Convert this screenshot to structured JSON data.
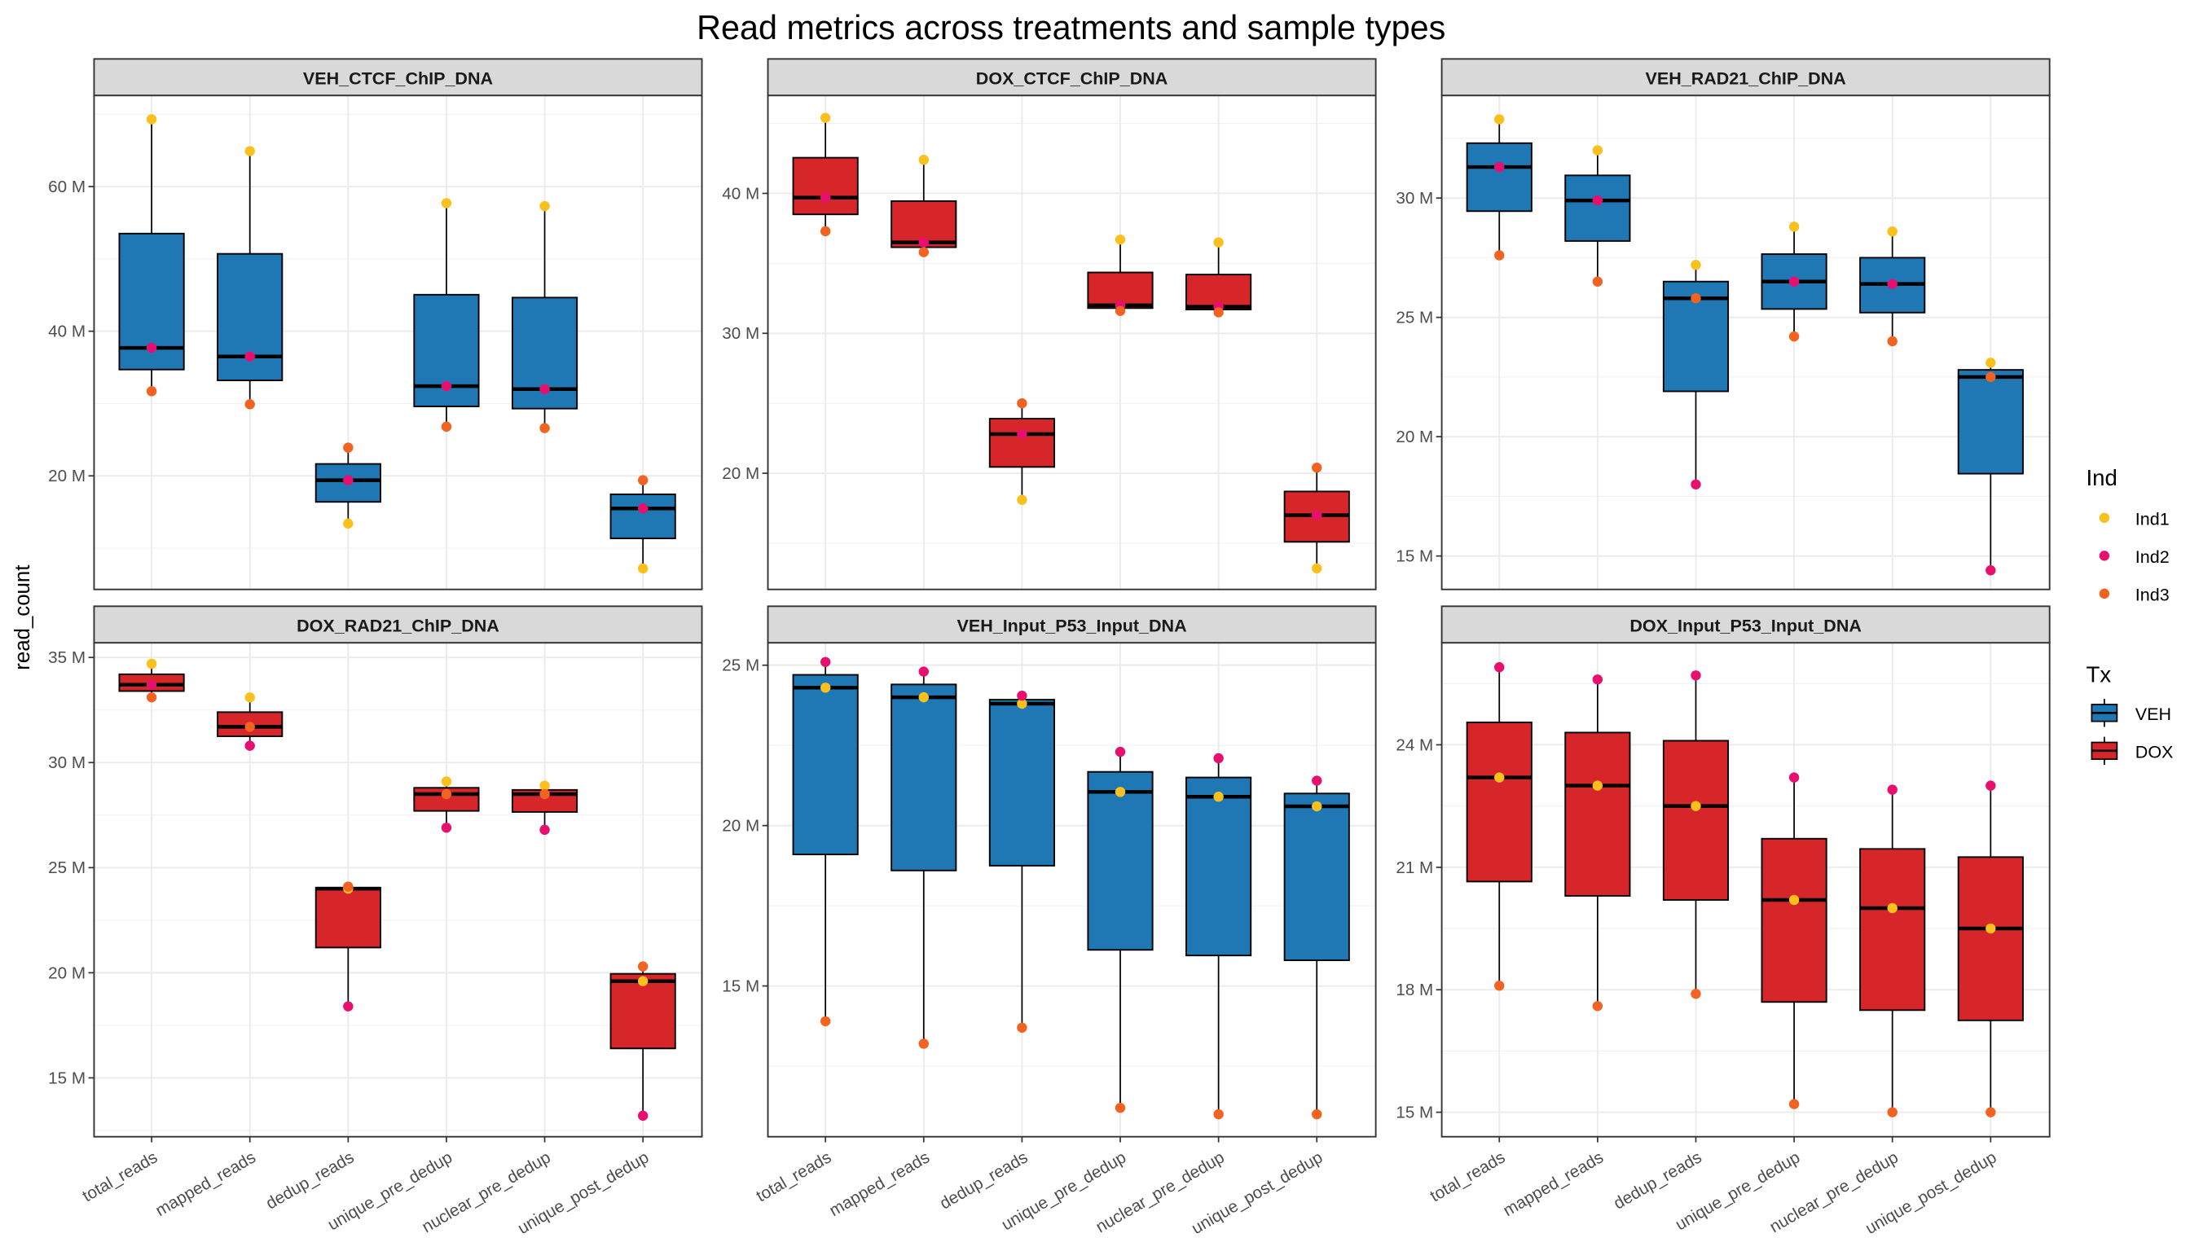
{
  "chart_data": {
    "type": "box",
    "title": "Read metrics across treatments and sample types",
    "xlabel": "",
    "ylabel": "read_count",
    "categories": [
      "total_reads",
      "mapped_reads",
      "dedup_reads",
      "unique_pre_dedup",
      "nuclear_pre_dedup",
      "unique_post_dedup"
    ],
    "unit_suffix": " M",
    "legend_ind": {
      "title": "Ind",
      "entries": [
        "Ind1",
        "Ind2",
        "Ind3"
      ],
      "colors": [
        "#F9C01E",
        "#E8106F",
        "#F26322"
      ],
      "position": "right"
    },
    "legend_tx": {
      "title": "Tx",
      "entries": [
        "VEH",
        "DOX"
      ],
      "colors": [
        "#1F78B4",
        "#D7262A"
      ],
      "position": "right"
    },
    "grid": true,
    "panels": [
      {
        "name": "VEH_CTCF_ChIP_DNA",
        "tx": "VEH",
        "ylim": [
          4.3,
          72.6
        ],
        "yticks": [
          20,
          40,
          60
        ],
        "points": {
          "Ind1": [
            69.3,
            64.9,
            13.4,
            57.7,
            57.3,
            7.2
          ],
          "Ind2": [
            37.7,
            36.5,
            19.4,
            32.4,
            32.0,
            15.5
          ],
          "Ind3": [
            31.7,
            29.9,
            23.9,
            26.8,
            26.6,
            19.4
          ]
        }
      },
      {
        "name": "DOX_CTCF_ChIP_DNA",
        "tx": "DOX",
        "ylim": [
          11.7,
          47.0
        ],
        "yticks": [
          20,
          30,
          40
        ],
        "points": {
          "Ind1": [
            45.4,
            42.4,
            18.1,
            36.7,
            36.5,
            13.2
          ],
          "Ind2": [
            39.7,
            36.5,
            22.8,
            32.0,
            31.9,
            17.0
          ],
          "Ind3": [
            37.3,
            35.8,
            25.0,
            31.6,
            31.5,
            20.4
          ]
        }
      },
      {
        "name": "VEH_RAD21_ChIP_DNA",
        "tx": "VEH",
        "ylim": [
          13.6,
          34.3
        ],
        "yticks": [
          15,
          20,
          25,
          30
        ],
        "points": {
          "Ind1": [
            33.3,
            32.0,
            27.2,
            28.8,
            28.6,
            23.1
          ],
          "Ind2": [
            31.3,
            29.9,
            18.0,
            26.5,
            26.4,
            14.4
          ],
          "Ind3": [
            27.6,
            26.5,
            25.8,
            24.2,
            24.0,
            22.5
          ]
        }
      },
      {
        "name": "DOX_RAD21_ChIP_DNA",
        "tx": "DOX",
        "ylim": [
          12.2,
          35.7
        ],
        "yticks": [
          15,
          20,
          25,
          30,
          35
        ],
        "points": {
          "Ind1": [
            34.7,
            33.1,
            24.0,
            29.1,
            28.9,
            19.6
          ],
          "Ind2": [
            33.7,
            30.8,
            18.4,
            26.9,
            26.8,
            13.2
          ],
          "Ind3": [
            33.1,
            31.7,
            24.1,
            28.5,
            28.5,
            20.3
          ]
        }
      },
      {
        "name": "VEH_Input_P53_Input_DNA",
        "tx": "VEH",
        "ylim": [
          10.3,
          25.7
        ],
        "yticks": [
          15,
          20,
          25
        ],
        "points": {
          "Ind1": [
            24.3,
            24.0,
            23.8,
            21.05,
            20.9,
            20.6
          ],
          "Ind2": [
            25.1,
            24.8,
            24.05,
            22.3,
            22.1,
            21.4
          ],
          "Ind3": [
            13.9,
            13.2,
            13.7,
            11.2,
            11.0,
            11.0
          ]
        }
      },
      {
        "name": "DOX_Input_P53_Input_DNA",
        "tx": "DOX",
        "ylim": [
          14.4,
          26.5
        ],
        "yticks": [
          15,
          18,
          21,
          24
        ],
        "points": {
          "Ind1": [
            23.2,
            23.0,
            22.5,
            20.2,
            20.0,
            19.5
          ],
          "Ind2": [
            25.9,
            25.6,
            25.7,
            23.2,
            22.9,
            23.0
          ],
          "Ind3": [
            18.1,
            17.6,
            17.9,
            15.2,
            15.0,
            15.0
          ]
        }
      }
    ]
  }
}
